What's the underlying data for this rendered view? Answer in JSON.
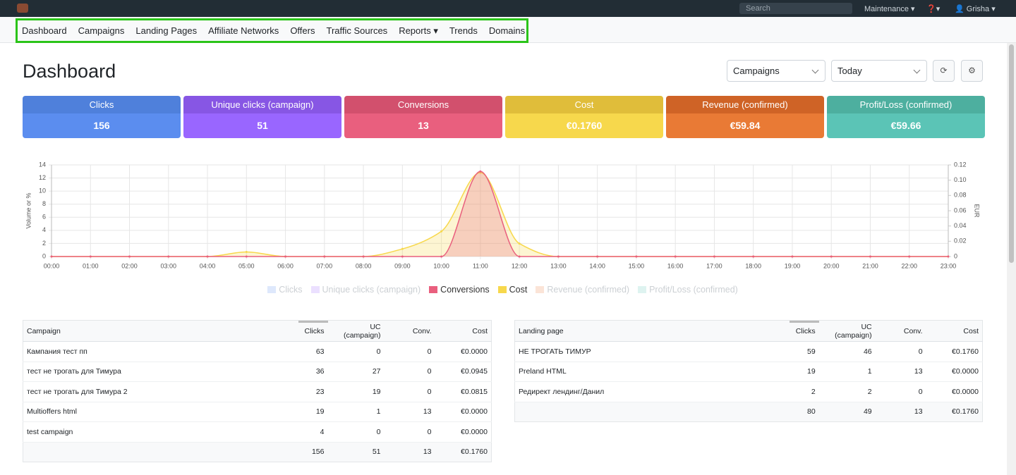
{
  "topbar": {
    "search_placeholder": "Search",
    "menu": [
      "Maintenance",
      "Grisha"
    ]
  },
  "nav": [
    "Dashboard",
    "Campaigns",
    "Landing Pages",
    "Affiliate Networks",
    "Offers",
    "Traffic Sources",
    "Reports",
    "Trends",
    "Domains"
  ],
  "title": "Dashboard",
  "filters": {
    "entity": "Campaigns",
    "period": "Today"
  },
  "cards": [
    {
      "label": "Clicks",
      "value": "156",
      "header_color": "#4f80db",
      "color": "#5b8def"
    },
    {
      "label": "Unique clicks (campaign)",
      "value": "51",
      "header_color": "#8756e4",
      "color": "#9966ff"
    },
    {
      "label": "Conversions",
      "value": "13",
      "header_color": "#d2506d",
      "color": "#e95f7e"
    },
    {
      "label": "Cost",
      "value": "€0.1760",
      "header_color": "#e0bd3a",
      "color": "#f7d84c"
    },
    {
      "label": "Revenue (confirmed)",
      "value": "€59.84",
      "header_color": "#cf6326",
      "color": "#e97a35"
    },
    {
      "label": "Profit/Loss (confirmed)",
      "value": "€59.66",
      "header_color": "#4daf9f",
      "color": "#5bc4b6"
    }
  ],
  "chart": {
    "type": "line",
    "ylabel": "Volume or %",
    "y2label": "EUR",
    "categories": [
      "00:00",
      "01:00",
      "02:00",
      "03:00",
      "04:00",
      "05:00",
      "06:00",
      "07:00",
      "08:00",
      "09:00",
      "10:00",
      "11:00",
      "12:00",
      "13:00",
      "14:00",
      "15:00",
      "16:00",
      "17:00",
      "18:00",
      "19:00",
      "20:00",
      "21:00",
      "22:00",
      "23:00"
    ],
    "ylim": [
      0,
      14
    ],
    "yticks": [
      0,
      2,
      4,
      6,
      8,
      10,
      12,
      14
    ],
    "y2lim": [
      0,
      0.12
    ],
    "y2ticks": [
      0,
      0.02,
      0.04,
      0.06,
      {
        "value": 0.08,
        "label": "0.08"
      },
      {
        "value": 0.1,
        "label": "0.10"
      },
      0.12
    ],
    "grid": true,
    "series": [
      {
        "name": "Clicks",
        "color": "#5b8def",
        "hidden": true
      },
      {
        "name": "Unique clicks (campaign)",
        "color": "#9966ff",
        "hidden": true
      },
      {
        "name": "Conversions",
        "color": "#e95f7e",
        "values": [
          0,
          0,
          0,
          0,
          0,
          0,
          0,
          0,
          0,
          0,
          0,
          13,
          0,
          0,
          0,
          0,
          0,
          0,
          0,
          0,
          0,
          0,
          0,
          0
        ]
      },
      {
        "name": "Cost",
        "color": "#f7d84c",
        "axis": "y2",
        "values": [
          0,
          0,
          0,
          0,
          0,
          0.006,
          0,
          0,
          0,
          0.01,
          0.033,
          0.11,
          0.017,
          0,
          0,
          0,
          0,
          0,
          0,
          0,
          0,
          0,
          0,
          0
        ]
      },
      {
        "name": "Revenue (confirmed)",
        "color": "#e97a35",
        "hidden": true
      },
      {
        "name": "Profit/Loss (confirmed)",
        "color": "#5bc4b6",
        "hidden": true
      }
    ]
  },
  "tables": [
    {
      "header": [
        "Campaign",
        "Clicks",
        "UC (campaign)",
        "Conv.",
        "Cost"
      ],
      "rows": [
        [
          "Кампания тест пп",
          "63",
          "0",
          "0",
          "€0.0000"
        ],
        [
          "тест не трогать для Тимура",
          "36",
          "27",
          "0",
          "€0.0945"
        ],
        [
          "тест не трогать для Тимура 2",
          "23",
          "19",
          "0",
          "€0.0815"
        ],
        [
          "Multioffers html",
          "19",
          "1",
          "13",
          "€0.0000"
        ],
        [
          "test campaign",
          "4",
          "0",
          "0",
          "€0.0000"
        ]
      ],
      "total": [
        "",
        "156",
        "51",
        "13",
        "€0.1760"
      ]
    },
    {
      "header": [
        "Landing page",
        "Clicks",
        "UC (campaign)",
        "Conv.",
        "Cost"
      ],
      "rows": [
        [
          "НЕ ТРОГАТЬ ТИМУР",
          "59",
          "46",
          "0",
          "€0.1760"
        ],
        [
          "Preland HTML",
          "19",
          "1",
          "13",
          "€0.0000"
        ],
        [
          "Редирект лендинг/Данил",
          "2",
          "2",
          "0",
          "€0.0000"
        ]
      ],
      "total": [
        "",
        "80",
        "49",
        "13",
        "€0.1760"
      ]
    }
  ]
}
